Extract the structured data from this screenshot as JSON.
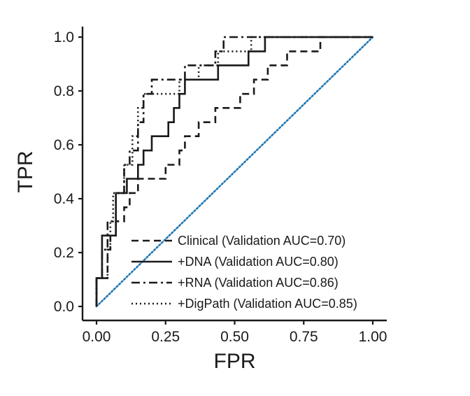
{
  "chart_data": {
    "type": "line",
    "xlabel": "FPR",
    "ylabel": "TPR",
    "xlim": [
      0,
      1
    ],
    "ylim": [
      0,
      1
    ],
    "x_ticks": [
      "0.00",
      "0.25",
      "0.50",
      "0.75",
      "1.00"
    ],
    "y_ticks": [
      "0.0",
      "0.2",
      "0.4",
      "0.6",
      "0.8",
      "1.0"
    ],
    "grid": false,
    "legend_position": "bottom-right",
    "diagonal_color": "#1f77b4",
    "series": [
      {
        "name": "Clinical (Validation AUC=0.70)",
        "style": "dashed",
        "points": [
          [
            0,
            0
          ],
          [
            0,
            0.105
          ],
          [
            0.04,
            0.105
          ],
          [
            0.04,
            0.211
          ],
          [
            0.05,
            0.211
          ],
          [
            0.05,
            0.263
          ],
          [
            0.07,
            0.263
          ],
          [
            0.07,
            0.316
          ],
          [
            0.1,
            0.316
          ],
          [
            0.1,
            0.368
          ],
          [
            0.12,
            0.368
          ],
          [
            0.12,
            0.421
          ],
          [
            0.15,
            0.421
          ],
          [
            0.15,
            0.474
          ],
          [
            0.25,
            0.474
          ],
          [
            0.25,
            0.526
          ],
          [
            0.3,
            0.526
          ],
          [
            0.3,
            0.579
          ],
          [
            0.32,
            0.579
          ],
          [
            0.32,
            0.632
          ],
          [
            0.37,
            0.632
          ],
          [
            0.37,
            0.684
          ],
          [
            0.43,
            0.684
          ],
          [
            0.43,
            0.737
          ],
          [
            0.52,
            0.737
          ],
          [
            0.52,
            0.789
          ],
          [
            0.57,
            0.789
          ],
          [
            0.57,
            0.842
          ],
          [
            0.62,
            0.842
          ],
          [
            0.62,
            0.895
          ],
          [
            0.69,
            0.895
          ],
          [
            0.69,
            0.947
          ],
          [
            0.81,
            0.947
          ],
          [
            0.81,
            1.0
          ],
          [
            1.0,
            1.0
          ]
        ]
      },
      {
        "name": "+DNA (Validation AUC=0.80)",
        "style": "solid",
        "points": [
          [
            0,
            0
          ],
          [
            0,
            0.105
          ],
          [
            0.02,
            0.105
          ],
          [
            0.02,
            0.263
          ],
          [
            0.07,
            0.263
          ],
          [
            0.07,
            0.421
          ],
          [
            0.11,
            0.421
          ],
          [
            0.11,
            0.474
          ],
          [
            0.15,
            0.474
          ],
          [
            0.15,
            0.526
          ],
          [
            0.17,
            0.526
          ],
          [
            0.17,
            0.579
          ],
          [
            0.2,
            0.579
          ],
          [
            0.2,
            0.632
          ],
          [
            0.26,
            0.632
          ],
          [
            0.26,
            0.684
          ],
          [
            0.28,
            0.684
          ],
          [
            0.28,
            0.737
          ],
          [
            0.3,
            0.737
          ],
          [
            0.3,
            0.789
          ],
          [
            0.32,
            0.789
          ],
          [
            0.32,
            0.842
          ],
          [
            0.44,
            0.842
          ],
          [
            0.44,
            0.895
          ],
          [
            0.55,
            0.895
          ],
          [
            0.55,
            0.947
          ],
          [
            0.61,
            0.947
          ],
          [
            0.61,
            1.0
          ],
          [
            1.0,
            1.0
          ]
        ]
      },
      {
        "name": "+RNA (Validation AUC=0.86)",
        "style": "dashdot",
        "points": [
          [
            0,
            0
          ],
          [
            0,
            0.105
          ],
          [
            0.02,
            0.105
          ],
          [
            0.02,
            0.211
          ],
          [
            0.04,
            0.211
          ],
          [
            0.04,
            0.316
          ],
          [
            0.07,
            0.316
          ],
          [
            0.07,
            0.421
          ],
          [
            0.1,
            0.421
          ],
          [
            0.1,
            0.526
          ],
          [
            0.12,
            0.526
          ],
          [
            0.12,
            0.579
          ],
          [
            0.15,
            0.579
          ],
          [
            0.15,
            0.684
          ],
          [
            0.17,
            0.684
          ],
          [
            0.17,
            0.789
          ],
          [
            0.2,
            0.789
          ],
          [
            0.2,
            0.842
          ],
          [
            0.32,
            0.842
          ],
          [
            0.32,
            0.895
          ],
          [
            0.43,
            0.895
          ],
          [
            0.43,
            0.947
          ],
          [
            0.46,
            0.947
          ],
          [
            0.46,
            1.0
          ],
          [
            1.0,
            1.0
          ]
        ]
      },
      {
        "name": "+DigPath (Validation AUC=0.85)",
        "style": "dotted",
        "points": [
          [
            0,
            0
          ],
          [
            0,
            0.105
          ],
          [
            0.04,
            0.105
          ],
          [
            0.04,
            0.211
          ],
          [
            0.05,
            0.211
          ],
          [
            0.05,
            0.316
          ],
          [
            0.06,
            0.316
          ],
          [
            0.06,
            0.421
          ],
          [
            0.1,
            0.421
          ],
          [
            0.1,
            0.526
          ],
          [
            0.13,
            0.526
          ],
          [
            0.13,
            0.632
          ],
          [
            0.15,
            0.632
          ],
          [
            0.15,
            0.737
          ],
          [
            0.17,
            0.737
          ],
          [
            0.17,
            0.789
          ],
          [
            0.3,
            0.789
          ],
          [
            0.3,
            0.842
          ],
          [
            0.37,
            0.842
          ],
          [
            0.37,
            0.895
          ],
          [
            0.44,
            0.895
          ],
          [
            0.44,
            0.947
          ],
          [
            0.56,
            0.947
          ],
          [
            0.56,
            1.0
          ],
          [
            1.0,
            1.0
          ]
        ]
      }
    ]
  }
}
